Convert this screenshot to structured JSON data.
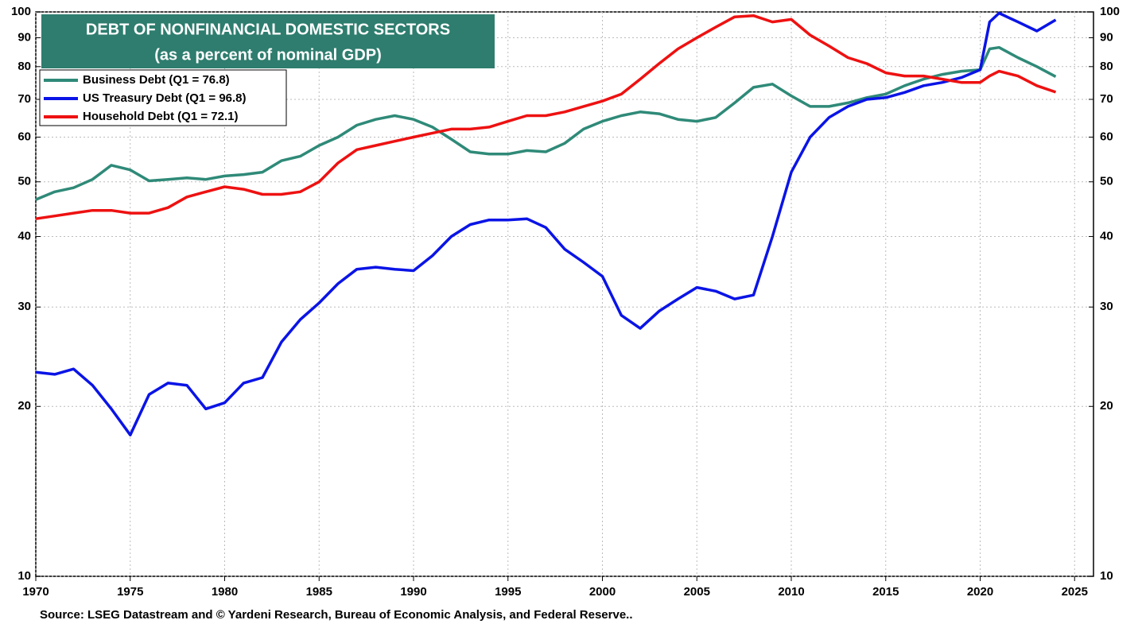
{
  "chart_data": {
    "type": "line",
    "title": "DEBT OF NONFINANCIAL DOMESTIC SECTORS",
    "subtitle": "(as a percent of nominal GDP)",
    "source": "Source: LSEG Datastream and © Yardeni Research, Bureau of Economic Analysis, and Federal Reserve..",
    "log_scale": true,
    "grid": true,
    "legend": "upper left",
    "x": [
      1970,
      1971,
      1972,
      1973,
      1974,
      1975,
      1976,
      1977,
      1978,
      1979,
      1980,
      1981,
      1982,
      1983,
      1984,
      1985,
      1986,
      1987,
      1988,
      1989,
      1990,
      1991,
      1992,
      1993,
      1994,
      1995,
      1996,
      1997,
      1998,
      1999,
      2000,
      2001,
      2002,
      2003,
      2004,
      2005,
      2006,
      2007,
      2008,
      2009,
      2010,
      2011,
      2012,
      2013,
      2014,
      2015,
      2016,
      2017,
      2018,
      2019,
      2020,
      2020.5,
      2021,
      2022,
      2023,
      2024
    ],
    "xlim": [
      1970,
      2026
    ],
    "xticks": [
      1970,
      1975,
      1980,
      1985,
      1990,
      1995,
      2000,
      2005,
      2010,
      2015,
      2020,
      2025
    ],
    "ylim": [
      10,
      100
    ],
    "yticks": [
      10,
      20,
      30,
      40,
      50,
      60,
      70,
      80,
      90,
      100
    ],
    "series": [
      {
        "name": "Business Debt (Q1 = 76.8)",
        "color": "#2f8a78",
        "values": [
          46.5,
          48,
          48.8,
          50.5,
          53.5,
          52.5,
          50.2,
          50.5,
          50.8,
          50.5,
          51.2,
          51.5,
          52,
          54.5,
          55.5,
          58,
          60,
          63,
          64.5,
          65.5,
          64.5,
          62.5,
          59.5,
          56.5,
          56,
          56,
          56.8,
          56.5,
          58.5,
          62,
          64,
          65.5,
          66.5,
          66,
          64.5,
          64,
          65,
          69,
          73.5,
          74.5,
          71,
          68,
          68,
          69,
          70.5,
          71.5,
          74,
          76,
          77.5,
          78.5,
          79,
          86,
          86.5,
          83,
          80,
          76.8
        ]
      },
      {
        "name": "US Treasury  Debt (Q1 = 96.8)",
        "color": "#0a14e6",
        "values": [
          23,
          22.8,
          23.3,
          21.8,
          19.8,
          17.8,
          21,
          22,
          21.8,
          19.8,
          20.3,
          22,
          22.5,
          26,
          28.5,
          30.5,
          33,
          35,
          35.3,
          35,
          34.8,
          37,
          40,
          42,
          42.8,
          42.8,
          43,
          41.5,
          38,
          36,
          34,
          29,
          27.5,
          29.5,
          31,
          32.5,
          32,
          31,
          31.5,
          40,
          52,
          60,
          65,
          68,
          70,
          70.5,
          72,
          74,
          75,
          76.5,
          79,
          96,
          99.5,
          96,
          92.5,
          96.8
        ]
      },
      {
        "name": "Household  Debt (Q1 = 72.1)",
        "color": "#ee1111",
        "values": [
          43,
          43.5,
          44,
          44.5,
          44.5,
          44,
          44,
          45,
          47,
          48,
          49,
          48.5,
          47.5,
          47.5,
          48,
          50,
          54,
          57,
          58,
          59,
          60,
          61,
          62,
          62,
          62.5,
          64,
          65.5,
          65.5,
          66.5,
          68,
          69.5,
          71.5,
          76,
          81,
          86,
          90,
          94,
          98,
          98.5,
          96,
          97,
          91,
          87,
          83,
          81,
          78,
          77,
          77,
          76,
          75,
          75,
          77,
          78.5,
          77,
          74,
          72.1
        ]
      }
    ]
  }
}
